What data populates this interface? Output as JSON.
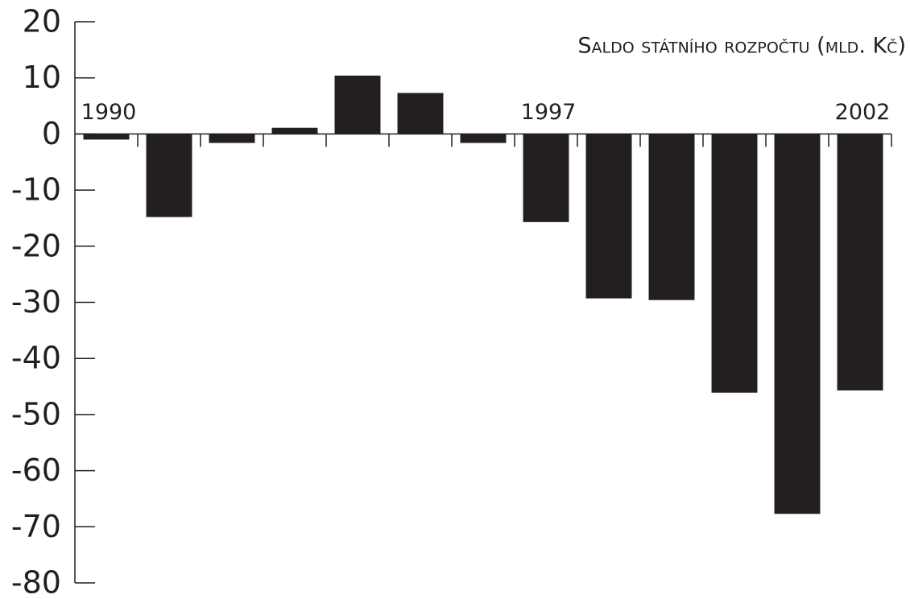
{
  "chart_data": {
    "type": "bar",
    "title": "Saldo státního rozpočtu (mld. Kč)",
    "categories": [
      "1990",
      null,
      null,
      null,
      null,
      null,
      null,
      "1997",
      null,
      null,
      null,
      null,
      "2002"
    ],
    "values": [
      -1.0,
      -14.8,
      -1.6,
      1.1,
      10.4,
      7.3,
      -1.6,
      -15.7,
      -29.3,
      -29.6,
      -46.1,
      -67.7,
      -45.7
    ],
    "color": "#231f20",
    "ylim": [
      -80,
      20
    ],
    "yticks": [
      -80,
      -70,
      -60,
      -50,
      -40,
      -30,
      -20,
      -10,
      0,
      10,
      20
    ],
    "grid": false
  }
}
